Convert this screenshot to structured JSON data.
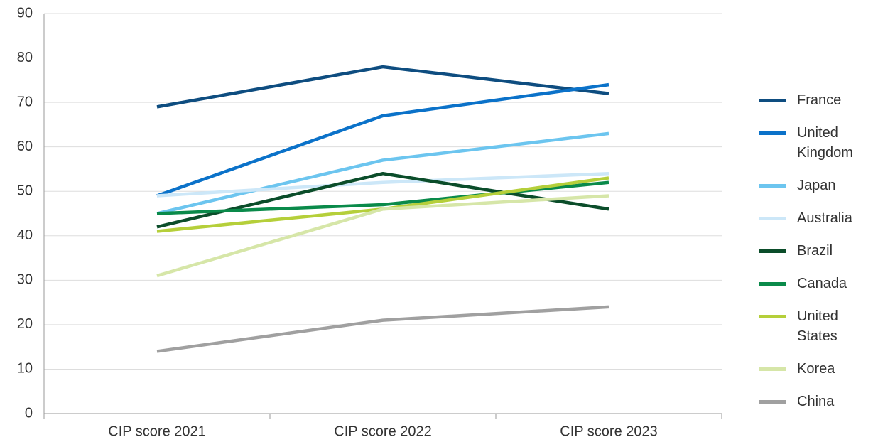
{
  "chart_data": {
    "type": "line",
    "categories": [
      "CIP score 2021",
      "CIP score 2022",
      "CIP score 2023"
    ],
    "series": [
      {
        "name": "France",
        "color": "#0e4d80",
        "values": [
          69,
          78,
          72
        ]
      },
      {
        "name": "United Kingdom",
        "color": "#0b72c9",
        "values": [
          49,
          67,
          74
        ]
      },
      {
        "name": "Japan",
        "color": "#6cc5ef",
        "values": [
          45,
          57,
          63
        ]
      },
      {
        "name": "Australia",
        "color": "#cce7f8",
        "values": [
          49,
          52,
          54
        ]
      },
      {
        "name": "Brazil",
        "color": "#0b4d2a",
        "values": [
          42,
          54,
          46
        ]
      },
      {
        "name": "Canada",
        "color": "#0a8a4a",
        "values": [
          45,
          47,
          52
        ]
      },
      {
        "name": "United States",
        "color": "#b5cf3a",
        "values": [
          41,
          46,
          53
        ]
      },
      {
        "name": "Korea",
        "color": "#d6e6a8",
        "values": [
          31,
          46,
          49
        ]
      },
      {
        "name": "China",
        "color": "#a0a0a0",
        "values": [
          14,
          21,
          24
        ]
      }
    ],
    "ylim": [
      0,
      90
    ],
    "yticks": [
      0,
      10,
      20,
      30,
      40,
      50,
      60,
      70,
      80,
      90
    ],
    "grid": true,
    "legend": "right"
  }
}
